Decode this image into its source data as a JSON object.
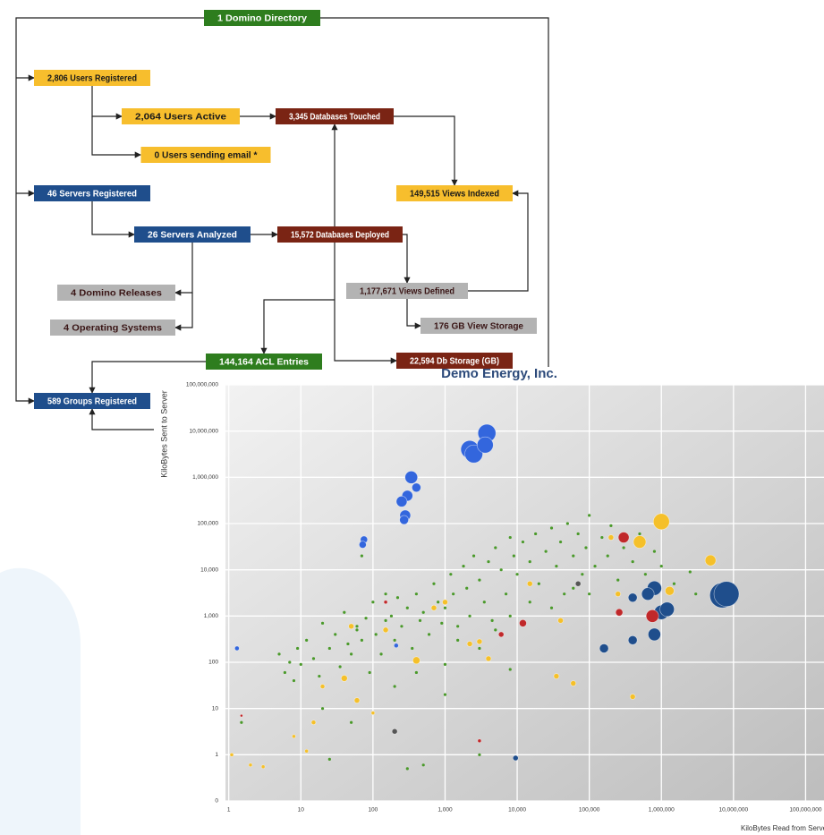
{
  "diagram": {
    "nodes": [
      {
        "label": "1 Domino Directory"
      },
      {
        "label": "2,806 Users Registered"
      },
      {
        "label": "2,064 Users Active"
      },
      {
        "label": "3,345 Databases Touched"
      },
      {
        "label": "0 Users sending email *"
      },
      {
        "label": "149,515 Views Indexed"
      },
      {
        "label": "46 Servers Registered"
      },
      {
        "label": "26 Servers Analyzed"
      },
      {
        "label": "15,572 Databases Deployed"
      },
      {
        "label": "4 Domino Releases"
      },
      {
        "label": "1,177,671 Views Defined"
      },
      {
        "label": "176 GB View Storage"
      },
      {
        "label": "4 Operating Systems"
      },
      {
        "label": "144,164 ACL Entries"
      },
      {
        "label": "22,594 Db Storage (GB)"
      },
      {
        "label": "589 Groups Registered"
      }
    ]
  },
  "chart_data": {
    "type": "scatter",
    "title": "Demo Energy, Inc.",
    "x_label": "KiloBytes Read from Server",
    "y_label": "KiloBytes Sent to Server",
    "log_x": true,
    "log_y": true,
    "grid": true,
    "xlim": [
      0.9,
      180000000
    ],
    "ylim": [
      0.1,
      100000000
    ],
    "xticks": [
      1,
      10,
      100,
      {
        "value": 1000,
        "label": "1,000"
      },
      {
        "value": 10000,
        "label": "10,000"
      },
      {
        "value": 100000,
        "label": "100,000"
      },
      {
        "value": 1000000,
        "label": "1,000,000"
      },
      {
        "value": 10000000,
        "label": "10,000,000"
      },
      {
        "value": 100000000,
        "label": "100,000,000"
      }
    ],
    "yticks": [
      {
        "value": 0.1,
        "label": "0"
      },
      1,
      10,
      100,
      {
        "value": 1000,
        "label": "1,000"
      },
      {
        "value": 10000,
        "label": "10,000"
      },
      {
        "value": 100000,
        "label": "100,000"
      },
      {
        "value": 1000000,
        "label": "1,000,000"
      },
      {
        "value": 10000000,
        "label": "10,000,000"
      },
      {
        "value": 100000000,
        "label": "100,000,000"
      }
    ],
    "series": [
      {
        "color": "#4a9a2a",
        "size": 1.6,
        "x": [
          5,
          6,
          7,
          8,
          9,
          10,
          12,
          15,
          18,
          20,
          25,
          30,
          35,
          40,
          45,
          50,
          60,
          70,
          80,
          90,
          100,
          110,
          130,
          150,
          180,
          200,
          220,
          250,
          300,
          350,
          400,
          450,
          500,
          600,
          700,
          800,
          900,
          1000,
          1200,
          1300,
          1500,
          1800,
          2000,
          2200,
          2500,
          3000,
          3500,
          4000,
          4500,
          5000,
          6000,
          7000,
          8000,
          9000,
          10000,
          12000,
          15000,
          18000,
          20000,
          25000,
          30000,
          35000,
          40000,
          45000,
          50000,
          60000,
          70000,
          80000,
          90000,
          100000,
          120000,
          150000,
          180000,
          200000,
          250000,
          300000,
          400000,
          500000,
          600000,
          800000,
          1000000,
          1500000,
          2500000,
          3000000,
          20,
          50,
          200,
          400,
          1000,
          1500,
          3000,
          5000,
          8000,
          15000,
          30000,
          60000,
          100000,
          3000,
          500,
          1000,
          8000,
          25,
          300,
          150,
          70,
          1.5,
          60
        ],
        "values": [
          150,
          60,
          100,
          40,
          200,
          90,
          300,
          120,
          50,
          700,
          200,
          400,
          80,
          1200,
          250,
          150,
          500,
          300,
          900,
          60,
          2000,
          400,
          150,
          800,
          1000,
          300,
          2500,
          600,
          1500,
          200,
          3000,
          800,
          1200,
          400,
          5000,
          2000,
          700,
          1500,
          8000,
          3000,
          600,
          12000,
          4000,
          1000,
          20000,
          6000,
          2000,
          15000,
          800,
          30000,
          10000,
          3000,
          50000,
          20000,
          8000,
          40000,
          15000,
          60000,
          5000,
          25000,
          80000,
          12000,
          40000,
          3000,
          100000,
          20000,
          60000,
          8000,
          30000,
          150000,
          12000,
          50000,
          20000,
          90000,
          6000,
          30000,
          15000,
          60000,
          8000,
          25000,
          12000,
          5000,
          9000,
          3000,
          10,
          5,
          30,
          60,
          90,
          300,
          200,
          500,
          1000,
          2000,
          1500,
          4000,
          3000,
          1,
          0.6,
          20,
          70,
          0.8,
          0.5,
          3000,
          20000,
          5,
          600
        ]
      },
      {
        "color": "#f5c02a",
        "x": [
          1000000,
          500000,
          4800000,
          1300000,
          1100000,
          400,
          40,
          60,
          50,
          150,
          2200,
          3000,
          4000,
          35000,
          60000,
          400000,
          1000,
          15000,
          20,
          15,
          100,
          1.1,
          2,
          3,
          200000,
          250000,
          40000,
          12,
          8,
          700
        ],
        "values": [
          110000,
          40000,
          16000,
          3500,
          1500,
          110,
          45,
          15,
          600,
          500,
          250,
          280,
          120,
          50,
          35,
          18,
          2000,
          5000,
          30,
          5,
          8,
          1,
          0.6,
          0.55,
          50000,
          3000,
          800,
          1.2,
          2.5,
          1500
        ],
        "sizes": [
          9,
          7,
          6,
          5,
          4,
          4,
          3.5,
          3,
          3,
          3,
          3,
          3,
          3,
          3,
          3,
          3,
          3,
          3,
          2.5,
          2.5,
          2,
          2,
          2,
          2,
          3,
          3,
          3,
          2,
          2,
          3
        ]
      },
      {
        "color": "#3366dd",
        "x": [
          2200,
          2500,
          3800,
          3600,
          340,
          300,
          250,
          400,
          280,
          270,
          75,
          72,
          1.3,
          210
        ],
        "values": [
          4000000,
          3200000,
          9000000,
          5000000,
          1000000,
          400000,
          300000,
          600000,
          150000,
          120000,
          45000,
          35000,
          200,
          230
        ],
        "sizes": [
          10,
          10,
          10,
          9,
          7,
          6,
          6,
          5,
          6,
          5,
          4,
          4,
          2.5,
          2.5
        ]
      },
      {
        "color": "#1f4e8c",
        "x": [
          7000000,
          8000000,
          1000000,
          1200000,
          800000,
          650000,
          800000,
          400000,
          160000,
          9500,
          400000
        ],
        "values": [
          2800,
          3000,
          1200,
          1400,
          4000,
          3000,
          400,
          300,
          200,
          0.85,
          2500
        ],
        "sizes": [
          14,
          14,
          8,
          8,
          8,
          7,
          7,
          5,
          5,
          3,
          5
        ]
      },
      {
        "color": "#c0282a",
        "x": [
          300000,
          750000,
          260000,
          12000,
          6000,
          1.5,
          3000,
          150
        ],
        "values": [
          50000,
          1000,
          1200,
          700,
          400,
          7,
          2,
          2000
        ],
        "sizes": [
          6,
          7,
          4,
          4,
          3,
          1.5,
          2,
          2
        ]
      },
      {
        "color": "#555555",
        "x": [
          200,
          70000
        ],
        "values": [
          3.2,
          5000
        ],
        "sizes": [
          3,
          3
        ]
      }
    ]
  }
}
